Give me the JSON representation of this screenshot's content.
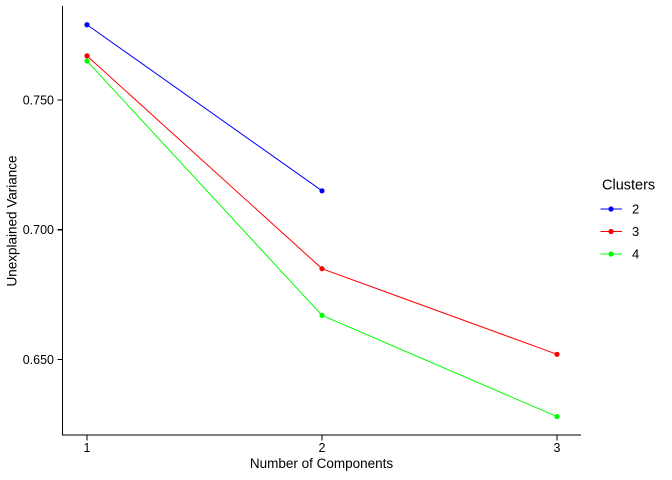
{
  "chart_data": {
    "type": "line",
    "title": "",
    "xlabel": "Number of Components",
    "ylabel": "Unexplained Variance",
    "x_ticks": [
      1,
      2,
      3
    ],
    "x_tick_labels": [
      "1",
      "2",
      "3"
    ],
    "y_ticks": [
      0.75,
      0.7,
      0.65
    ],
    "y_tick_labels": [
      "0.750",
      "0.700",
      "0.650"
    ],
    "xlim": [
      0.9,
      3.1
    ],
    "ylim": [
      0.6205,
      0.7865
    ],
    "grid": false,
    "background_color": "#ffffff",
    "axis_color": "#000000",
    "legend": {
      "title": "Clusters",
      "position": "right"
    },
    "series": [
      {
        "name": "2",
        "color": "#0000ff",
        "x": [
          1,
          2
        ],
        "y": [
          0.779,
          0.715
        ]
      },
      {
        "name": "3",
        "color": "#ff0000",
        "x": [
          1,
          2,
          3
        ],
        "y": [
          0.767,
          0.685,
          0.652
        ]
      },
      {
        "name": "4",
        "color": "#00ff00",
        "x": [
          1,
          2,
          3
        ],
        "y": [
          0.765,
          0.667,
          0.628
        ]
      }
    ]
  }
}
